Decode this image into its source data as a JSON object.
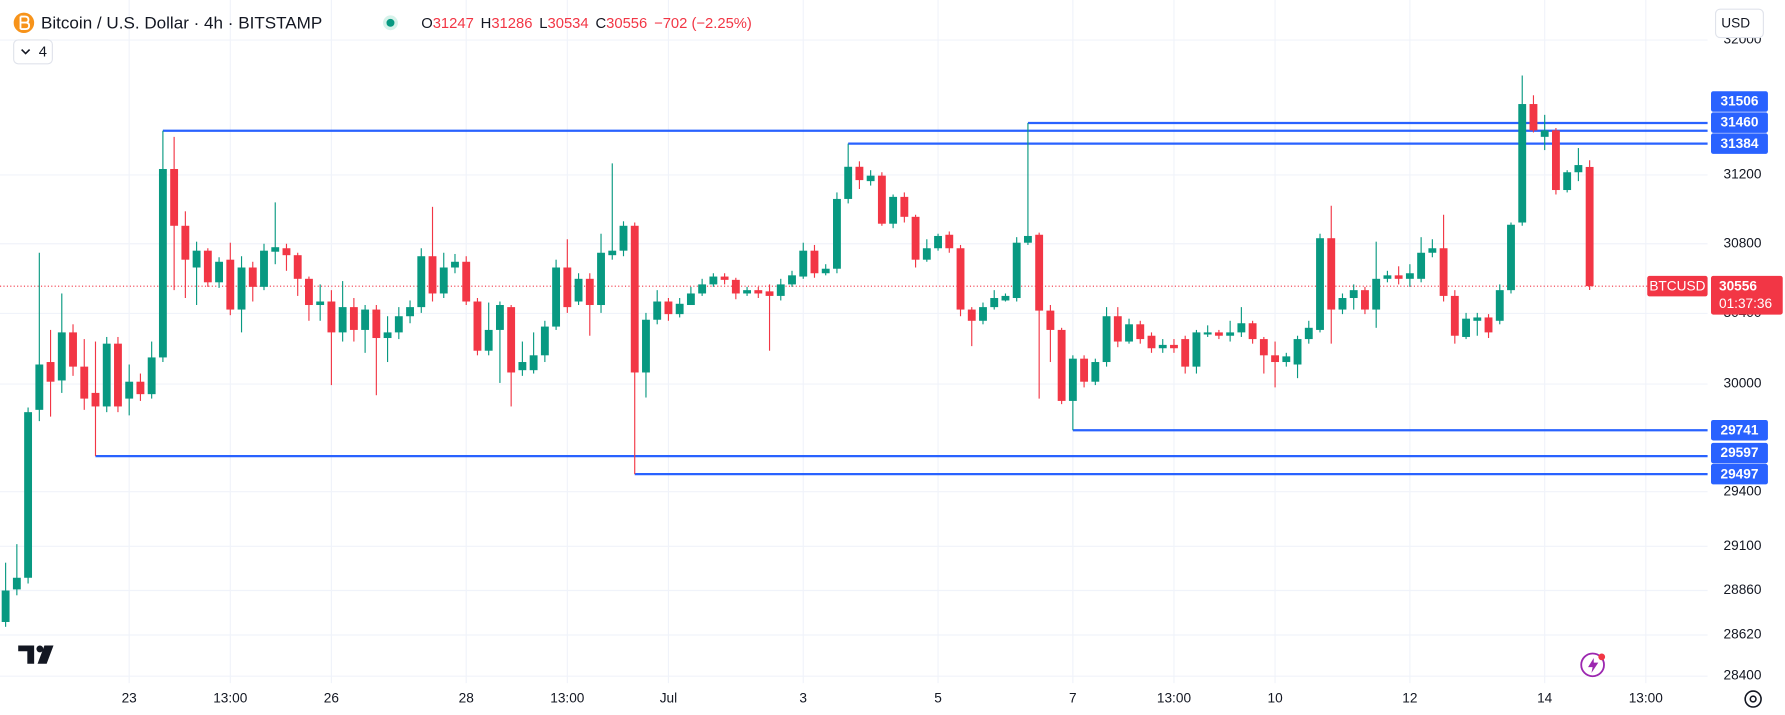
{
  "chart_data": {
    "type": "candlestick",
    "title": "Bitcoin / U.S. Dollar · 4h · BITSTAMP",
    "ohlc_labels": [
      "O",
      "H",
      "L",
      "C"
    ],
    "change": "−702 (−2.25%)",
    "currency": "USD",
    "indicator_count": 4,
    "symbol": "BTCUSD",
    "countdown": "01:37:36",
    "log_scale": true,
    "grid": true,
    "up_color": "#089981",
    "down_color": "#f23645",
    "level_color": "#2962ff",
    "ylim": [
      28363,
      32241
    ],
    "yticks": [
      28400,
      28620,
      28860,
      29100,
      29400,
      30000,
      30400,
      30800,
      31200,
      32000
    ],
    "categories": [
      null,
      null,
      null,
      null,
      null,
      null,
      null,
      null,
      null,
      null,
      null,
      "23",
      null,
      null,
      null,
      null,
      null,
      null,
      null,
      null,
      "13:00",
      null,
      null,
      null,
      null,
      null,
      null,
      null,
      null,
      "26",
      null,
      null,
      null,
      null,
      null,
      null,
      null,
      null,
      null,
      null,
      null,
      "28",
      null,
      null,
      null,
      null,
      null,
      null,
      null,
      null,
      "13:00",
      null,
      null,
      null,
      null,
      null,
      null,
      null,
      null,
      "Jul",
      null,
      null,
      null,
      null,
      null,
      null,
      null,
      null,
      null,
      null,
      null,
      "3",
      null,
      null,
      null,
      null,
      null,
      null,
      null,
      null,
      null,
      null,
      null,
      "5",
      null,
      null,
      null,
      null,
      null,
      null,
      null,
      null,
      null,
      null,
      null,
      "7",
      null,
      null,
      null,
      null,
      null,
      null,
      null,
      null,
      "13:00",
      null,
      null,
      null,
      null,
      null,
      null,
      null,
      null,
      "10",
      null,
      null,
      null,
      null,
      null,
      null,
      null,
      null,
      null,
      null,
      null,
      "12",
      null,
      null,
      null,
      null,
      null,
      null,
      null,
      null,
      null,
      null,
      null,
      "14",
      null,
      null,
      null,
      null,
      null,
      null,
      null,
      null,
      "13:00",
      null,
      null,
      null,
      null,
      null
    ],
    "open": [
      28690,
      28866,
      28929,
      29855,
      30124,
      30020,
      30292,
      30098,
      29950,
      29874,
      30228,
      29918,
      30013,
      29943,
      30150,
      31235,
      30904,
      30663,
      30760,
      30578,
      30708,
      30422,
      30663,
      30552,
      30754,
      30774,
      30734,
      30598,
      30448,
      30468,
      30292,
      30436,
      30306,
      30422,
      30260,
      30292,
      30384,
      30436,
      30728,
      30514,
      30663,
      30696,
      30468,
      30188,
      30306,
      30436,
      30078,
      30078,
      30162,
      30325,
      30663,
      30468,
      30598,
      30448,
      30734,
      30760,
      30904,
      30065,
      30364,
      30468,
      30396,
      30448,
      30514,
      30566,
      30611,
      30592,
      30514,
      30533,
      30526,
      30500,
      30566,
      30611,
      30760,
      30630,
      30656,
      31060,
      31248,
      31164,
      31196,
      30916,
      31072,
      30956,
      30708,
      30774,
      30852,
      30774,
      30422,
      30358,
      30436,
      30474,
      30488,
      30806,
      30852,
      30416,
      30306,
      29905,
      30143,
      30013,
      30124,
      30384,
      30240,
      30338,
      30273,
      30202,
      30221,
      30254,
      30098,
      30280,
      30292,
      30273,
      30292,
      30344,
      30254,
      30162,
      30124,
      30110,
      30254,
      30306,
      30832,
      30422,
      30488,
      30533,
      30422,
      30598,
      30618,
      30598,
      30598,
      30748,
      30774,
      30500,
      30266,
      30358,
      30377,
      30358,
      30533,
      30923,
      31618,
      31424,
      31462,
      31112,
      31216,
      31247,
      null,
      null,
      null,
      null,
      null,
      null,
      null,
      null,
      null,
      null
    ],
    "high": [
      29011,
      29112,
      29868,
      30748,
      30306,
      30514,
      30338,
      30254,
      30240,
      30266,
      30266,
      30110,
      30059,
      30240,
      31460,
      31424,
      30988,
      30812,
      30774,
      30722,
      30806,
      30728,
      30696,
      30800,
      31040,
      30800,
      30748,
      30611,
      30566,
      30533,
      30585,
      30488,
      30448,
      30448,
      30384,
      30436,
      30474,
      30774,
      31014,
      30748,
      30741,
      30728,
      30488,
      30462,
      30468,
      30448,
      30240,
      30292,
      30358,
      30708,
      30826,
      30630,
      30630,
      30858,
      31268,
      30930,
      30923,
      30403,
      30533,
      30488,
      30488,
      30552,
      30598,
      30630,
      30630,
      30604,
      30552,
      30552,
      30566,
      30598,
      30644,
      30806,
      30793,
      30682,
      31098,
      31384,
      31280,
      31228,
      31216,
      31086,
      31098,
      30968,
      30826,
      30858,
      30871,
      30793,
      30436,
      30462,
      30533,
      30514,
      30838,
      31506,
      30864,
      30448,
      30318,
      30162,
      30162,
      30143,
      30436,
      30436,
      30370,
      30358,
      30292,
      30254,
      30254,
      30273,
      30306,
      30332,
      30306,
      30358,
      30436,
      30358,
      30266,
      30240,
      30176,
      30273,
      30358,
      30858,
      31020,
      30514,
      30566,
      30552,
      30812,
      30644,
      30670,
      30682,
      30838,
      30826,
      30968,
      30533,
      30403,
      30403,
      30396,
      30566,
      30923,
      31788,
      31670,
      31554,
      31476,
      31228,
      31358,
      31286,
      null,
      null,
      null,
      null,
      null,
      null,
      null,
      null,
      null,
      null
    ],
    "low": [
      28664,
      28834,
      28898,
      29792,
      29817,
      29950,
      30046,
      29855,
      29597,
      29842,
      29842,
      29824,
      29905,
      29918,
      30124,
      30533,
      30488,
      30448,
      30552,
      30546,
      30390,
      30292,
      30468,
      30533,
      30682,
      30644,
      30500,
      30358,
      30358,
      29994,
      30240,
      30240,
      30176,
      29937,
      30124,
      30254,
      30344,
      30403,
      30468,
      30488,
      30630,
      30448,
      30162,
      30162,
      30006,
      29874,
      30046,
      30059,
      30124,
      30306,
      30403,
      30448,
      30273,
      30403,
      30708,
      30728,
      29497,
      29924,
      30338,
      30358,
      30377,
      30468,
      30500,
      30552,
      30566,
      30481,
      30500,
      30488,
      30188,
      30474,
      30552,
      30598,
      30604,
      30618,
      30630,
      31034,
      31118,
      31138,
      30904,
      30890,
      30923,
      30663,
      30696,
      30760,
      30748,
      30384,
      30214,
      30338,
      30422,
      30468,
      30468,
      30793,
      29918,
      30124,
      29887,
      29741,
      29981,
      29994,
      30098,
      30208,
      30228,
      30228,
      30176,
      30176,
      30176,
      30059,
      30059,
      30266,
      30254,
      30240,
      30266,
      30228,
      30059,
      29981,
      30098,
      30033,
      30228,
      30292,
      30228,
      30396,
      30422,
      30396,
      30318,
      30578,
      30566,
      30552,
      30578,
      30722,
      30468,
      30228,
      30254,
      30273,
      30260,
      30338,
      30514,
      30904,
      31450,
      31346,
      31086,
      31098,
      31164,
      30534,
      null,
      null,
      null,
      null,
      null,
      null,
      null,
      null,
      null,
      null
    ],
    "close": [
      28860,
      28929,
      29842,
      30110,
      30013,
      30292,
      30098,
      29918,
      29874,
      30228,
      29874,
      30013,
      29943,
      30150,
      31235,
      30904,
      30708,
      30760,
      30578,
      30696,
      30422,
      30663,
      30552,
      30760,
      30780,
      30734,
      30598,
      30448,
      30468,
      30292,
      30436,
      30306,
      30422,
      30260,
      30292,
      30384,
      30436,
      30728,
      30514,
      30663,
      30696,
      30468,
      30188,
      30306,
      30448,
      30065,
      30124,
      30162,
      30325,
      30663,
      30436,
      30598,
      30448,
      30748,
      30760,
      30904,
      30065,
      30364,
      30468,
      30396,
      30455,
      30514,
      30566,
      30611,
      30592,
      30514,
      30533,
      30514,
      30500,
      30566,
      30618,
      30760,
      30630,
      30656,
      31060,
      31248,
      31170,
      31196,
      30916,
      31072,
      30956,
      30708,
      30774,
      30845,
      30774,
      30422,
      30358,
      30436,
      30488,
      30500,
      30806,
      30845,
      30416,
      30306,
      29905,
      30143,
      30013,
      30124,
      30384,
      30240,
      30338,
      30254,
      30202,
      30221,
      30202,
      30098,
      30292,
      30292,
      30273,
      30292,
      30344,
      30254,
      30162,
      30124,
      30156,
      30254,
      30318,
      30832,
      30422,
      30488,
      30533,
      30422,
      30598,
      30618,
      30598,
      30630,
      30748,
      30774,
      30500,
      30273,
      30370,
      30377,
      30292,
      30533,
      30910,
      31618,
      31462,
      31462,
      31112,
      31216,
      31258,
      30556,
      null,
      null,
      null,
      null,
      null,
      null,
      null,
      null,
      null,
      null
    ],
    "levels": [
      {
        "value": 31506,
        "start": 91
      },
      {
        "value": 31460,
        "start": 14
      },
      {
        "value": 31384,
        "start": 75
      },
      {
        "value": 29741,
        "start": 95
      },
      {
        "value": 29597,
        "start": 8
      },
      {
        "value": 29497,
        "start": 56
      }
    ]
  }
}
